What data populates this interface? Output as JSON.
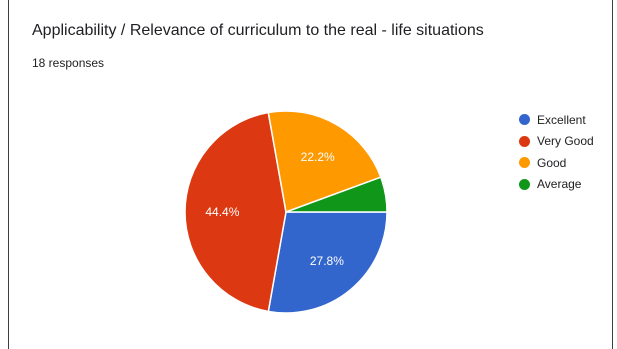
{
  "chart_data": {
    "type": "pie",
    "title": "Applicability / Relevance of curriculum to the real - life situations",
    "subtitle": "18 responses",
    "slices": [
      {
        "label": "Excellent",
        "value": 27.8,
        "display": "27.8%",
        "color": "#3366cc"
      },
      {
        "label": "Very Good",
        "value": 44.4,
        "display": "44.4%",
        "color": "#dc3912"
      },
      {
        "label": "Good",
        "value": 22.2,
        "display": "22.2%",
        "color": "#ff9900"
      },
      {
        "label": "Average",
        "value": 5.6,
        "display": "",
        "color": "#109618"
      }
    ],
    "legend_position": "right"
  }
}
